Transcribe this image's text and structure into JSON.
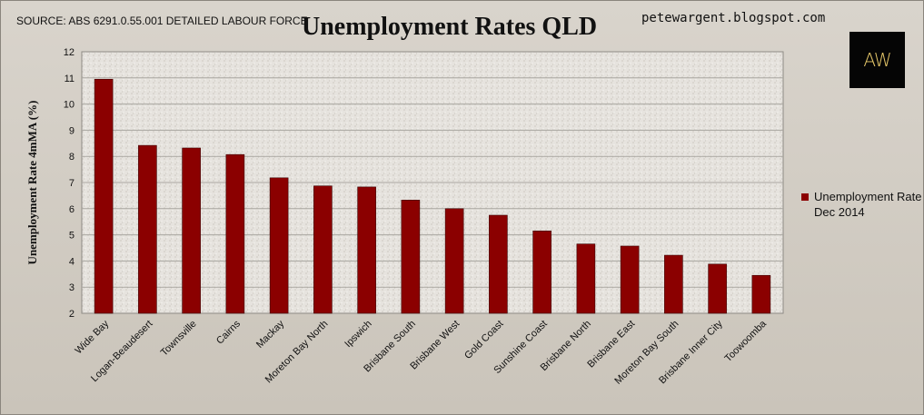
{
  "header": {
    "source": "SOURCE: ABS 6291.0.55.001 DETAILED LABOUR FORCE",
    "blog": "petewargent.blogspot.com",
    "logo_text": "AW"
  },
  "chart_data": {
    "type": "bar",
    "title": "Unemployment Rates QLD",
    "ylabel": "Unemployment Rate 4mMA (%)",
    "xlabel": "",
    "ylim": [
      2,
      12
    ],
    "yticks": [
      2,
      3,
      4,
      5,
      6,
      7,
      8,
      9,
      10,
      11,
      12
    ],
    "grid": true,
    "legend_position": "right",
    "categories": [
      "Wide Bay",
      "Logan-Beaudesert",
      "Townsville",
      "Cairns",
      "Mackay",
      "Moreton Bay North",
      "Ipswich",
      "Brisbane South",
      "Brisbane West",
      "Gold Coast",
      "Sunshine Coast",
      "Brisbane North",
      "Brisbane East",
      "Moreton Bay South",
      "Brisbane Inner City",
      "Toowoomba"
    ],
    "series": [
      {
        "name": "Unemployment Rate Dec 2014",
        "color": "#8b0000",
        "values": [
          10.95,
          8.42,
          8.32,
          8.07,
          7.18,
          6.87,
          6.83,
          6.33,
          6.0,
          5.75,
          5.15,
          4.65,
          4.57,
          4.22,
          3.88,
          3.45
        ]
      }
    ]
  }
}
